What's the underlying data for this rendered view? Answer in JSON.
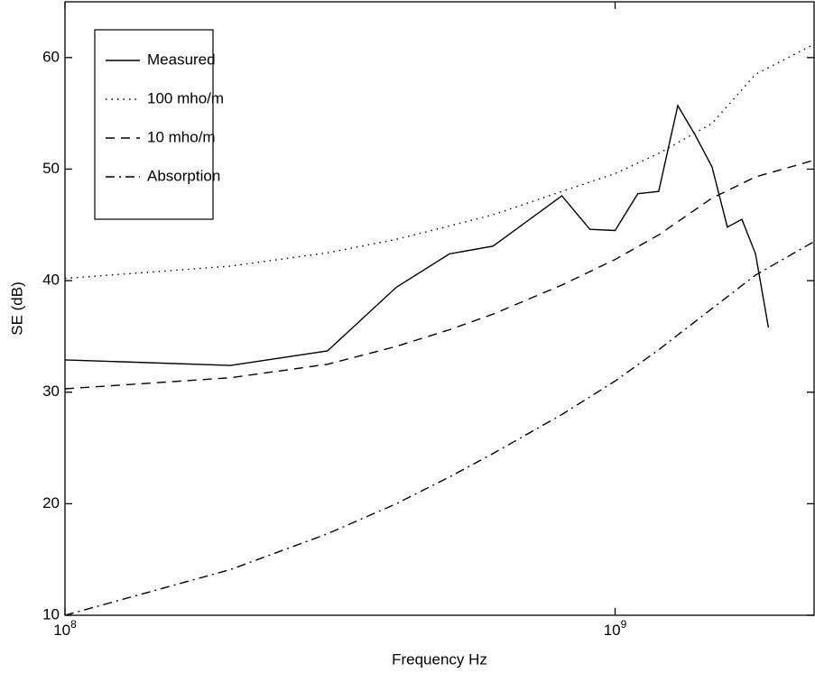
{
  "chart_data": {
    "type": "line",
    "xlabel": "Frequency Hz",
    "ylabel": "SE (dB)",
    "xscale": "log",
    "xlim": [
      100000000,
      2300000000
    ],
    "ylim": [
      10,
      65
    ],
    "xticks": [
      {
        "value": 100000000,
        "label": "10^8"
      },
      {
        "value": 1000000000,
        "label": "10^9"
      }
    ],
    "yticks": [
      10,
      20,
      30,
      40,
      50,
      60
    ],
    "grid": false,
    "legend": "upper left",
    "series": [
      {
        "name": "Measured",
        "color": "#000000",
        "dash": "solid",
        "x": [
          100000000,
          200000000,
          300000000,
          400000000,
          500000000,
          600000000,
          800000000,
          900000000,
          1000000000,
          1100000000,
          1200000000,
          1300000000,
          1400000000,
          1500000000,
          1600000000,
          1700000000,
          1800000000,
          1900000000
        ],
        "values": [
          32.9,
          32.4,
          33.7,
          39.4,
          42.4,
          43.1,
          47.6,
          44.6,
          44.5,
          47.8,
          48.0,
          55.7,
          53.0,
          50.2,
          44.8,
          45.5,
          42.4,
          35.8
        ]
      },
      {
        "name": "100 mho/m",
        "color": "#000000",
        "dash": "dotted",
        "x": [
          100000000,
          200000000,
          300000000,
          400000000,
          500000000,
          600000000,
          800000000,
          1000000000,
          1200000000,
          1500000000,
          1800000000,
          2300000000
        ],
        "values": [
          40.2,
          41.3,
          42.5,
          43.7,
          44.9,
          45.9,
          48.0,
          49.6,
          51.4,
          54.1,
          58.5,
          61.2
        ]
      },
      {
        "name": "10 mho/m",
        "color": "#000000",
        "dash": "dashed",
        "x": [
          100000000,
          200000000,
          300000000,
          400000000,
          500000000,
          600000000,
          800000000,
          1000000000,
          1200000000,
          1500000000,
          1800000000,
          2300000000
        ],
        "values": [
          30.3,
          31.3,
          32.5,
          34.1,
          35.6,
          37.0,
          39.6,
          41.9,
          44.1,
          47.4,
          49.3,
          50.8
        ]
      },
      {
        "name": "Absorption",
        "color": "#000000",
        "dash": "dashdot",
        "x": [
          100000000,
          200000000,
          300000000,
          400000000,
          500000000,
          600000000,
          800000000,
          1000000000,
          1200000000,
          1500000000,
          1800000000,
          2300000000
        ],
        "values": [
          10.0,
          14.1,
          17.3,
          20.0,
          22.4,
          24.5,
          28.0,
          31.0,
          33.8,
          37.5,
          40.5,
          43.5
        ]
      }
    ]
  }
}
